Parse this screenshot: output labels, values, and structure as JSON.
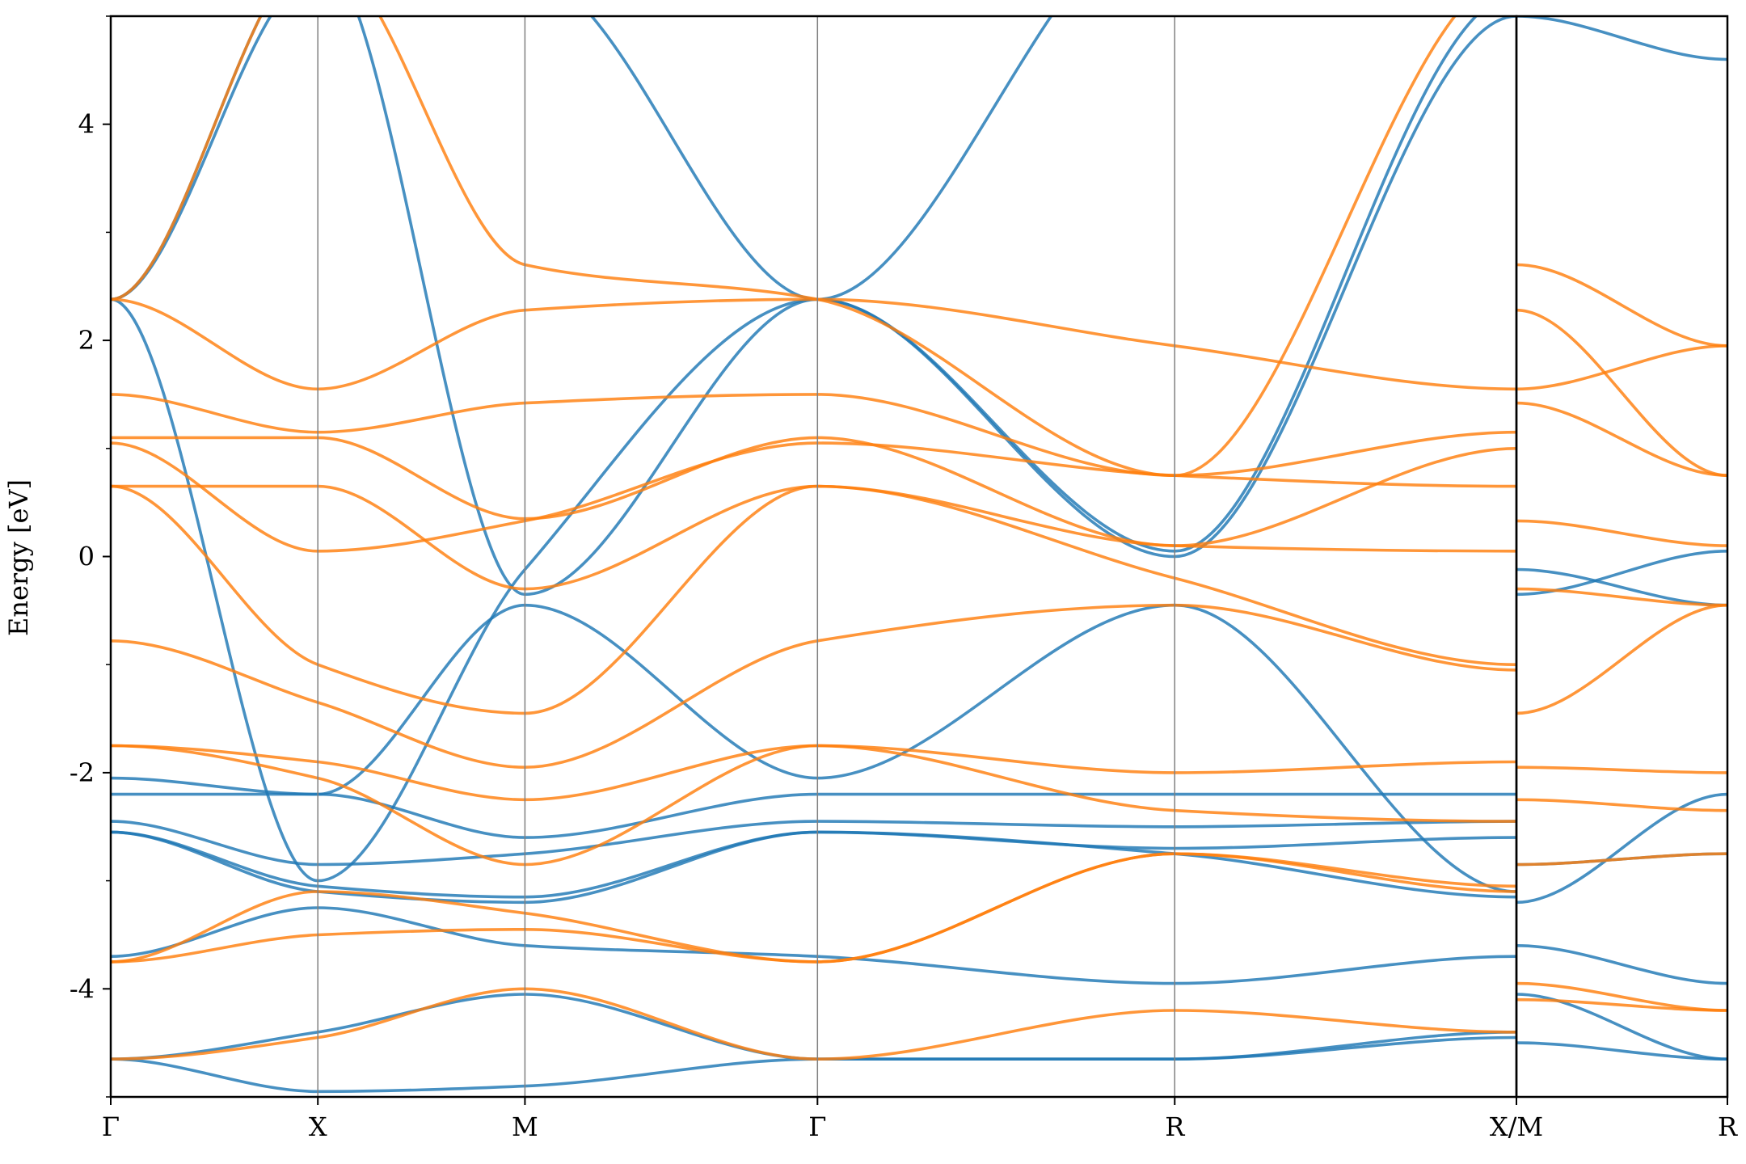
{
  "chart_data": {
    "type": "line",
    "title": "",
    "xlabel": "",
    "ylabel": "Energy [eV]",
    "ylim": [
      -5,
      5
    ],
    "yticks": [
      -4,
      -2,
      0,
      2,
      4
    ],
    "ytick_labels": [
      "-4",
      "-2",
      "0",
      "2",
      "4"
    ],
    "grid": false,
    "legend": "none",
    "colors": {
      "blue": "#1f77b4",
      "orange": "#ff7f0e",
      "divider": "#808080"
    },
    "panels": [
      {
        "name": "panel-1",
        "x_range": [
          0,
          5.43
        ],
        "kpoints": [
          {
            "label": "Γ",
            "x": 0.0
          },
          {
            "label": "X",
            "x": 0.8
          },
          {
            "label": "M",
            "x": 1.6
          },
          {
            "label": "Γ",
            "x": 2.73
          },
          {
            "label": "R",
            "x": 4.11
          },
          {
            "label": "X/M",
            "x": 5.43
          }
        ]
      },
      {
        "name": "panel-2",
        "x_range": [
          0,
          0.8
        ],
        "kpoints": [
          {
            "label": "X/M",
            "x": 0.0
          },
          {
            "label": "R",
            "x": 0.8
          }
        ]
      }
    ],
    "series": [
      {
        "color": "blue",
        "panel": 0,
        "x": [
          0,
          0.8,
          1.6,
          2.73,
          4.11,
          5.43
        ],
        "y": [
          2.38,
          5.4,
          5.4,
          2.38,
          6.0,
          6.0
        ]
      },
      {
        "color": "blue",
        "panel": 0,
        "x": [
          0,
          0.8,
          1.6,
          2.73,
          4.11,
          5.43
        ],
        "y": [
          2.38,
          -3.0,
          -0.12,
          2.38,
          0.0,
          5.0
        ]
      },
      {
        "color": "blue",
        "panel": 0,
        "x": [
          0,
          0.8,
          1.6,
          2.73,
          4.11,
          5.43
        ],
        "y": [
          2.38,
          5.6,
          -0.35,
          2.38,
          0.05,
          5.2
        ]
      },
      {
        "color": "blue",
        "panel": 0,
        "x": [
          0,
          0.8,
          1.6,
          2.73,
          4.11,
          5.43
        ],
        "y": [
          -2.05,
          -2.2,
          -0.45,
          -2.05,
          -0.45,
          -3.1
        ]
      },
      {
        "color": "blue",
        "panel": 0,
        "x": [
          0,
          0.8,
          1.6,
          2.73,
          4.11,
          5.43
        ],
        "y": [
          -2.2,
          -2.2,
          -2.6,
          -2.2,
          -2.2,
          -2.2
        ]
      },
      {
        "color": "blue",
        "panel": 0,
        "x": [
          0,
          0.8,
          1.6,
          2.73,
          4.11,
          5.43
        ],
        "y": [
          -2.45,
          -2.85,
          -2.75,
          -2.45,
          -2.5,
          -2.45
        ]
      },
      {
        "color": "blue",
        "panel": 0,
        "x": [
          0,
          0.8,
          1.6,
          2.73,
          4.11,
          5.43
        ],
        "y": [
          -2.55,
          -3.05,
          -3.15,
          -2.55,
          -2.7,
          -2.6
        ]
      },
      {
        "color": "blue",
        "panel": 0,
        "x": [
          0,
          0.8,
          1.6,
          2.73,
          4.11,
          5.43
        ],
        "y": [
          -3.7,
          -3.25,
          -3.6,
          -3.7,
          -3.95,
          -3.7
        ]
      },
      {
        "color": "blue",
        "panel": 0,
        "x": [
          0,
          0.8,
          1.6,
          2.73,
          4.11,
          5.43
        ],
        "y": [
          -4.65,
          -4.4,
          -4.05,
          -4.65,
          -4.65,
          -4.4
        ]
      },
      {
        "color": "blue",
        "panel": 0,
        "x": [
          0,
          0.8,
          1.6,
          2.73,
          4.11,
          5.43
        ],
        "y": [
          -4.65,
          -4.95,
          -4.9,
          -4.65,
          -4.65,
          -4.45
        ]
      },
      {
        "color": "blue",
        "panel": 0,
        "x": [
          0,
          0.8,
          1.6,
          2.73,
          4.11,
          5.43
        ],
        "y": [
          -2.55,
          -3.1,
          -3.2,
          -2.55,
          -2.75,
          -3.15
        ]
      },
      {
        "color": "orange",
        "panel": 0,
        "x": [
          0,
          0.8,
          1.6,
          2.73,
          4.11,
          5.43
        ],
        "y": [
          2.38,
          5.6,
          2.7,
          2.38,
          0.75,
          5.4
        ]
      },
      {
        "color": "orange",
        "panel": 0,
        "x": [
          0,
          0.8,
          1.6,
          2.73,
          4.11,
          5.43
        ],
        "y": [
          2.38,
          1.55,
          2.28,
          2.38,
          1.95,
          1.55
        ]
      },
      {
        "color": "orange",
        "panel": 0,
        "x": [
          0,
          0.8,
          1.6,
          2.73,
          4.11,
          5.43
        ],
        "y": [
          1.5,
          1.15,
          1.42,
          1.5,
          0.75,
          1.15
        ]
      },
      {
        "color": "orange",
        "panel": 0,
        "x": [
          0,
          0.8,
          1.6,
          2.73,
          4.11,
          5.43
        ],
        "y": [
          1.1,
          1.1,
          0.35,
          1.1,
          0.1,
          1.0
        ]
      },
      {
        "color": "orange",
        "panel": 0,
        "x": [
          0,
          0.8,
          1.6,
          2.73,
          4.11,
          5.43
        ],
        "y": [
          1.05,
          0.05,
          0.33,
          1.05,
          0.75,
          0.65
        ]
      },
      {
        "color": "orange",
        "panel": 0,
        "x": [
          0,
          0.8,
          1.6,
          2.73,
          4.11,
          5.43
        ],
        "y": [
          0.65,
          0.65,
          -0.3,
          0.65,
          0.1,
          0.05
        ]
      },
      {
        "color": "orange",
        "panel": 0,
        "x": [
          0,
          0.8,
          1.6,
          2.73,
          4.11,
          5.43
        ],
        "y": [
          0.65,
          -1.0,
          -1.45,
          0.65,
          -0.2,
          -1.0
        ]
      },
      {
        "color": "orange",
        "panel": 0,
        "x": [
          0,
          0.8,
          1.6,
          2.73,
          4.11,
          5.43
        ],
        "y": [
          -0.78,
          -1.35,
          -1.95,
          -0.78,
          -0.45,
          -1.05
        ]
      },
      {
        "color": "orange",
        "panel": 0,
        "x": [
          0,
          0.8,
          1.6,
          2.73,
          4.11,
          5.43
        ],
        "y": [
          -1.75,
          -1.9,
          -2.25,
          -1.75,
          -2.0,
          -1.9
        ]
      },
      {
        "color": "orange",
        "panel": 0,
        "x": [
          0,
          0.8,
          1.6,
          2.73,
          4.11,
          5.43
        ],
        "y": [
          -1.75,
          -2.05,
          -2.85,
          -1.75,
          -2.35,
          -2.45
        ]
      },
      {
        "color": "orange",
        "panel": 0,
        "x": [
          0,
          0.8,
          1.6,
          2.73,
          4.11,
          5.43
        ],
        "y": [
          -3.75,
          -3.1,
          -3.3,
          -3.75,
          -2.75,
          -3.1
        ]
      },
      {
        "color": "orange",
        "panel": 0,
        "x": [
          0,
          0.8,
          1.6,
          2.73,
          4.11,
          5.43
        ],
        "y": [
          -4.65,
          -4.45,
          -4.0,
          -4.65,
          -4.2,
          -4.4
        ]
      },
      {
        "color": "orange",
        "panel": 0,
        "x": [
          0,
          0.8,
          1.6,
          2.73,
          4.11,
          5.43
        ],
        "y": [
          -3.75,
          -3.5,
          -3.45,
          -3.75,
          -2.75,
          -3.05
        ]
      },
      {
        "color": "blue",
        "panel": 1,
        "x": [
          0,
          0.8
        ],
        "y": [
          -0.12,
          -0.45
        ]
      },
      {
        "color": "blue",
        "panel": 1,
        "x": [
          0,
          0.8
        ],
        "y": [
          -0.35,
          0.05
        ]
      },
      {
        "color": "blue",
        "panel": 1,
        "x": [
          0,
          0.8
        ],
        "y": [
          -3.2,
          -2.2
        ]
      },
      {
        "color": "blue",
        "panel": 1,
        "x": [
          0,
          0.8
        ],
        "y": [
          -2.85,
          -2.75
        ]
      },
      {
        "color": "blue",
        "panel": 1,
        "x": [
          0,
          0.8
        ],
        "y": [
          -3.6,
          -3.95
        ]
      },
      {
        "color": "blue",
        "panel": 1,
        "x": [
          0,
          0.8
        ],
        "y": [
          -4.05,
          -4.65
        ]
      },
      {
        "color": "blue",
        "panel": 1,
        "x": [
          0,
          0.8
        ],
        "y": [
          -4.5,
          -4.65
        ]
      },
      {
        "color": "blue",
        "panel": 1,
        "x": [
          0,
          0.8
        ],
        "y": [
          5.0,
          4.6
        ]
      },
      {
        "color": "orange",
        "panel": 1,
        "x": [
          0,
          0.8
        ],
        "y": [
          2.7,
          1.95
        ]
      },
      {
        "color": "orange",
        "panel": 1,
        "x": [
          0,
          0.8
        ],
        "y": [
          2.28,
          0.75
        ]
      },
      {
        "color": "orange",
        "panel": 1,
        "x": [
          0,
          0.8
        ],
        "y": [
          1.55,
          1.95
        ]
      },
      {
        "color": "orange",
        "panel": 1,
        "x": [
          0,
          0.8
        ],
        "y": [
          1.42,
          0.75
        ]
      },
      {
        "color": "orange",
        "panel": 1,
        "x": [
          0,
          0.8
        ],
        "y": [
          0.33,
          0.1
        ]
      },
      {
        "color": "orange",
        "panel": 1,
        "x": [
          0,
          0.8
        ],
        "y": [
          -0.3,
          -0.45
        ]
      },
      {
        "color": "orange",
        "panel": 1,
        "x": [
          0,
          0.8
        ],
        "y": [
          -1.45,
          -0.45
        ]
      },
      {
        "color": "orange",
        "panel": 1,
        "x": [
          0,
          0.8
        ],
        "y": [
          -1.95,
          -2.0
        ]
      },
      {
        "color": "orange",
        "panel": 1,
        "x": [
          0,
          0.8
        ],
        "y": [
          -2.25,
          -2.35
        ]
      },
      {
        "color": "orange",
        "panel": 1,
        "x": [
          0,
          0.8
        ],
        "y": [
          -2.85,
          -2.75
        ]
      },
      {
        "color": "orange",
        "panel": 1,
        "x": [
          0,
          0.8
        ],
        "y": [
          -3.95,
          -4.2
        ]
      },
      {
        "color": "orange",
        "panel": 1,
        "x": [
          0,
          0.8
        ],
        "y": [
          -4.1,
          -4.2
        ]
      }
    ]
  }
}
